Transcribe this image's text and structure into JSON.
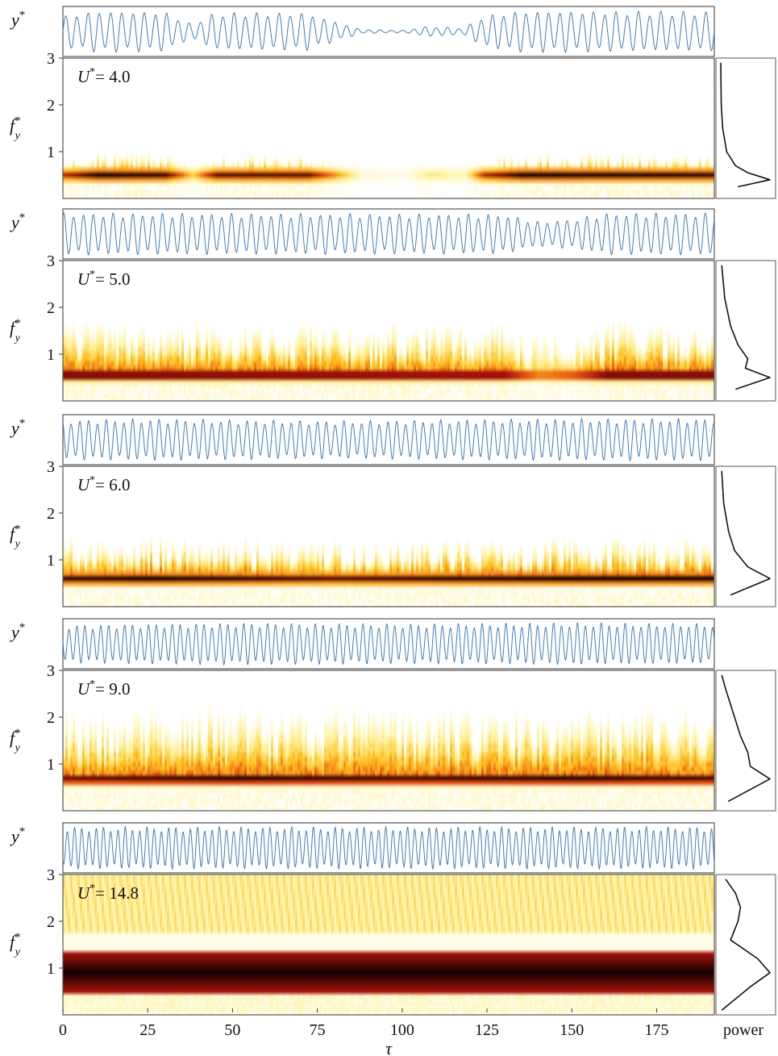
{
  "chart_data": {
    "type": "heatmap",
    "description_note": "",
    "xaxis": {
      "label": "τ",
      "ticks": [
        0,
        25,
        50,
        75,
        100,
        125,
        150,
        175
      ],
      "range": [
        0,
        192
      ]
    },
    "power_label": "power",
    "disp_label": {
      "var": "y",
      "sup": "*"
    },
    "freq_label": {
      "var": "f",
      "sup": "*",
      "sub": "y"
    },
    "yticks": [
      1,
      2,
      3
    ],
    "yrange": [
      0,
      3
    ],
    "colormap": {
      "low": "#ffffff",
      "mid1": "#fff3a0",
      "mid2": "#ffbf1f",
      "mid3": "#e8560f",
      "mid4": "#a3120a",
      "high": "#120000"
    },
    "trace_color": "#3f7fb8",
    "panels": [
      {
        "label_var": "U",
        "label_sup": "*",
        "label_value": "= 4.0",
        "dominant_freq": 0.5,
        "tail_top": 1.0,
        "amp_segments": [
          [
            0,
            0.75
          ],
          [
            10,
            1.0
          ],
          [
            30,
            0.95
          ],
          [
            38,
            0.35
          ],
          [
            45,
            0.9
          ],
          [
            72,
            0.9
          ],
          [
            88,
            0.1
          ],
          [
            100,
            0.05
          ],
          [
            108,
            0.25
          ],
          [
            118,
            0.15
          ],
          [
            124,
            0.75
          ],
          [
            135,
            1.0
          ],
          [
            192,
            0.95
          ]
        ],
        "power_curve": [
          [
            0.25,
            0.35
          ],
          [
            0.4,
            1.0
          ],
          [
            0.55,
            0.55
          ],
          [
            0.7,
            0.3
          ],
          [
            1.0,
            0.12
          ],
          [
            1.5,
            0.04
          ],
          [
            2.0,
            0.01
          ],
          [
            2.9,
            0.0
          ]
        ]
      },
      {
        "label_var": "U",
        "label_sup": "*",
        "label_value": "= 5.0",
        "dominant_freq": 0.55,
        "tail_top": 1.75,
        "amp_segments": [
          [
            0,
            1.0
          ],
          [
            130,
            0.95
          ],
          [
            140,
            0.6
          ],
          [
            150,
            0.7
          ],
          [
            160,
            1.0
          ],
          [
            192,
            1.0
          ]
        ],
        "power_curve": [
          [
            0.25,
            0.3
          ],
          [
            0.5,
            1.0
          ],
          [
            0.7,
            0.5
          ],
          [
            0.9,
            0.55
          ],
          [
            1.2,
            0.35
          ],
          [
            1.6,
            0.2
          ],
          [
            2.2,
            0.08
          ],
          [
            2.9,
            0.02
          ]
        ]
      },
      {
        "label_var": "U",
        "label_sup": "*",
        "label_value": "= 6.0",
        "dominant_freq": 0.6,
        "tail_top": 1.55,
        "amp_segments": [
          [
            0,
            0.95
          ],
          [
            25,
            1.0
          ],
          [
            80,
            0.9
          ],
          [
            110,
            0.95
          ],
          [
            150,
            1.0
          ],
          [
            192,
            1.0
          ]
        ],
        "power_curve": [
          [
            0.25,
            0.2
          ],
          [
            0.6,
            1.0
          ],
          [
            0.85,
            0.55
          ],
          [
            1.2,
            0.28
          ],
          [
            1.6,
            0.16
          ],
          [
            2.2,
            0.06
          ],
          [
            2.9,
            0.02
          ]
        ]
      },
      {
        "label_var": "U",
        "label_sup": "*",
        "label_value": "= 9.0",
        "dominant_freq": 0.68,
        "tail_top": 2.3,
        "amp_segments": [
          [
            0,
            0.9
          ],
          [
            25,
            0.95
          ],
          [
            50,
            1.0
          ],
          [
            100,
            0.95
          ],
          [
            150,
            1.0
          ],
          [
            192,
            0.95
          ]
        ],
        "power_curve": [
          [
            0.2,
            0.15
          ],
          [
            0.68,
            1.0
          ],
          [
            0.95,
            0.6
          ],
          [
            1.25,
            0.55
          ],
          [
            1.6,
            0.4
          ],
          [
            2.1,
            0.25
          ],
          [
            2.6,
            0.1
          ],
          [
            2.9,
            0.02
          ]
        ]
      },
      {
        "label_var": "U",
        "label_sup": "*",
        "label_value": "= 14.8",
        "dominant_freq": 0.9,
        "tail_top": 3.0,
        "amp_segments": [
          [
            0,
            1.0
          ],
          [
            192,
            1.0
          ]
        ],
        "power_curve": [
          [
            0.1,
            0.02
          ],
          [
            0.6,
            0.6
          ],
          [
            0.9,
            1.0
          ],
          [
            1.2,
            0.75
          ],
          [
            1.6,
            0.2
          ],
          [
            2.0,
            0.35
          ],
          [
            2.3,
            0.4
          ],
          [
            2.6,
            0.3
          ],
          [
            2.9,
            0.1
          ]
        ]
      }
    ]
  }
}
